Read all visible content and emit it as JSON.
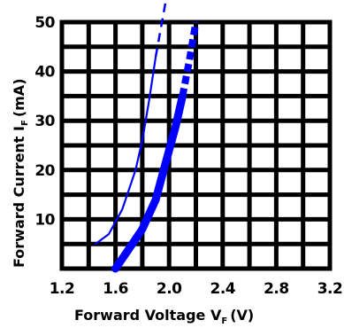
{
  "chart_data": {
    "type": "line",
    "x_axis": {
      "label_main": "Forward Voltage V",
      "label_sub": "F",
      "label_unit": "(V)",
      "range": [
        1.2,
        3.2
      ],
      "ticks": [
        1.2,
        1.6,
        2.0,
        2.4,
        2.8,
        3.2
      ],
      "tick_labels": [
        "1.2",
        "1.6",
        "2.0",
        "2.4",
        "2.8",
        "3.2"
      ],
      "grid_step": 0.2
    },
    "y_axis": {
      "label_main": "Forward Current I",
      "label_sub": "F",
      "label_unit": "(mA)",
      "range": [
        0,
        50
      ],
      "ticks": [
        10,
        20,
        30,
        40,
        50
      ],
      "tick_labels": [
        "10",
        "20",
        "30",
        "40",
        "50"
      ],
      "grid_step": 5
    },
    "grid": true,
    "series": [
      {
        "style": "thin",
        "color": "#0000ff",
        "x": [
          1.45,
          1.55,
          1.65,
          1.75,
          1.8,
          1.85,
          1.9
        ],
        "y": [
          5,
          7,
          12,
          20,
          26,
          34,
          43
        ],
        "dashed_extension": {
          "x": [
            1.9,
            2.0
          ],
          "y": [
            43,
            58
          ]
        }
      },
      {
        "style": "thick",
        "color": "#0000ff",
        "x": [
          1.6,
          1.7,
          1.8,
          1.9,
          1.95,
          2.0,
          2.05,
          2.1
        ],
        "y": [
          0,
          4,
          8,
          14,
          19,
          24,
          29,
          35
        ],
        "dashed_extension": {
          "x": [
            2.1,
            2.15,
            2.2
          ],
          "y": [
            35,
            42,
            50
          ]
        }
      }
    ]
  }
}
